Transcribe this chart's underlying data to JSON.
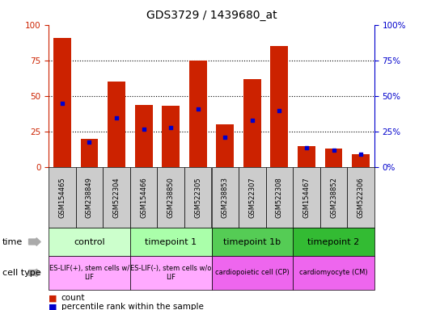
{
  "title": "GDS3729 / 1439680_at",
  "samples": [
    "GSM154465",
    "GSM238849",
    "GSM522304",
    "GSM154466",
    "GSM238850",
    "GSM522305",
    "GSM238853",
    "GSM522307",
    "GSM522308",
    "GSM154467",
    "GSM238852",
    "GSM522306"
  ],
  "count_values": [
    91,
    20,
    60,
    44,
    43,
    75,
    30,
    62,
    85,
    15,
    13,
    9
  ],
  "percentile_values": [
    45,
    18,
    35,
    27,
    28,
    41,
    21,
    33,
    40,
    14,
    12,
    9
  ],
  "ylim": [
    0,
    100
  ],
  "groups": [
    {
      "label": "control",
      "start": 0,
      "end": 3,
      "color_time": "#ccffcc",
      "color_cell": "#ffaaff",
      "cell_label": "ES-LIF(+), stem cells w/\nLIF"
    },
    {
      "label": "timepoint 1",
      "start": 3,
      "end": 6,
      "color_time": "#aaffaa",
      "color_cell": "#ffaaff",
      "cell_label": "ES-LIF(-), stem cells w/o\nLIF"
    },
    {
      "label": "timepoint 1b",
      "start": 6,
      "end": 9,
      "color_time": "#55cc55",
      "color_cell": "#ee66ee",
      "cell_label": "cardiopoietic cell (CP)"
    },
    {
      "label": "timepoint 2",
      "start": 9,
      "end": 12,
      "color_time": "#33bb33",
      "color_cell": "#ee66ee",
      "cell_label": "cardiomyocyte (CM)"
    }
  ],
  "bar_color": "#cc2200",
  "dot_color": "#0000cc",
  "tick_color_left": "#cc2200",
  "tick_color_right": "#0000cc",
  "xticklabel_bg": "#cccccc",
  "time_arrow_color": "#999999",
  "legend_count": "count",
  "legend_pct": "percentile rank within the sample"
}
